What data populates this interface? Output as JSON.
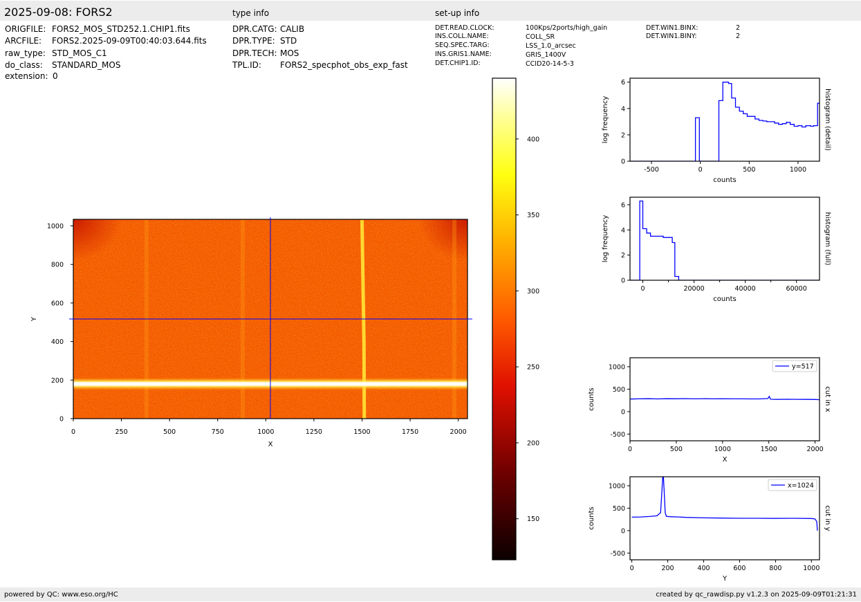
{
  "header": {
    "title": "2025-09-08: FORS2",
    "type_info_heading": "type info",
    "setup_info_heading": "set-up info"
  },
  "file_info": [
    {
      "key": "ORIGFILE:",
      "value": "FORS2_MOS_STD252.1.CHIP1.fits"
    },
    {
      "key": "ARCFILE:",
      "value": "FORS2.2025-09-09T00:40:03.644.fits"
    },
    {
      "key": "raw_type:",
      "value": "STD_MOS_C1"
    },
    {
      "key": "do_class:",
      "value": "STANDARD_MOS"
    },
    {
      "key": "extension:",
      "value": "0"
    }
  ],
  "type_info": [
    {
      "key": "DPR.CATG:",
      "value": "CALIB"
    },
    {
      "key": "DPR.TYPE:",
      "value": "STD"
    },
    {
      "key": "DPR.TECH:",
      "value": "MOS"
    },
    {
      "key": "TPL.ID:",
      "value": "FORS2_specphot_obs_exp_fast"
    }
  ],
  "setup_info": [
    {
      "key": "DET.READ.CLOCK:",
      "value": "100Kps/2ports/high_gain"
    },
    {
      "key": "INS.COLL.NAME:",
      "value": "COLL_SR"
    },
    {
      "key": "SEQ.SPEC.TARG:",
      "value": "LSS_1.0_arcsec"
    },
    {
      "key": "INS.GRIS1.NAME:",
      "value": "GRIS_1400V"
    },
    {
      "key": "DET.CHIP1.ID:",
      "value": "CCID20-14-5-3"
    }
  ],
  "setup_info_2": [
    {
      "key": "DET.WIN1.BINX:",
      "value": "2"
    },
    {
      "key": "DET.WIN1.BINY:",
      "value": "2"
    }
  ],
  "footer": {
    "left": "powered by QC: www.eso.org/HC",
    "right": "created by qc_rawdisp.py v1.2.3 on 2025-09-09T01:21:31"
  },
  "colors": {
    "band": "#ececec",
    "line": "#0000ff",
    "crosshair": "#0000ff"
  },
  "chart_data": [
    {
      "type": "heatmap",
      "xlabel": "X",
      "ylabel": "Y",
      "xlim": [
        0,
        2048
      ],
      "ylim": [
        0,
        1034
      ],
      "xticks": [
        0,
        250,
        500,
        750,
        1000,
        1250,
        1500,
        1750,
        2000
      ],
      "yticks": [
        0,
        200,
        400,
        600,
        800,
        1000
      ],
      "crosshair": {
        "x": 1024,
        "y": 517
      },
      "colormap": "hot",
      "features": {
        "background_level": 285,
        "horizontal_continuum_y": 180,
        "vertical_line_x": 1510
      }
    },
    {
      "type": "colorbar",
      "range": [
        123,
        440
      ],
      "ticks": [
        150,
        200,
        250,
        300,
        350,
        400
      ]
    },
    {
      "type": "line",
      "xlabel": "counts",
      "ylabel": "log frequency",
      "side_label": "histogram (detail)",
      "xlim": [
        -720,
        1220
      ],
      "ylim": [
        0,
        6.3
      ],
      "xticks": [
        -500,
        0,
        500,
        1000
      ],
      "yticks": [
        0,
        2,
        4,
        6
      ],
      "step": true,
      "x": [
        -720,
        -50,
        -50,
        -10,
        -10,
        190,
        190,
        230,
        230,
        290,
        290,
        320,
        320,
        360,
        360,
        400,
        400,
        440,
        440,
        480,
        480,
        560,
        560,
        600,
        600,
        640,
        640,
        680,
        680,
        760,
        760,
        800,
        800,
        840,
        840,
        880,
        880,
        920,
        920,
        960,
        960,
        1000,
        1000,
        1040,
        1040,
        1080,
        1080,
        1130,
        1130,
        1160,
        1160,
        1200,
        1200,
        1220
      ],
      "y": [
        0,
        0,
        3.3,
        3.3,
        0,
        0,
        4.6,
        4.6,
        6.0,
        6.0,
        5.9,
        5.9,
        4.8,
        4.8,
        4.1,
        4.1,
        3.8,
        3.8,
        3.6,
        3.6,
        3.4,
        3.4,
        3.2,
        3.2,
        3.1,
        3.1,
        3.05,
        3.05,
        3.0,
        3.0,
        2.9,
        2.9,
        2.8,
        2.8,
        2.85,
        2.85,
        2.95,
        2.95,
        2.8,
        2.8,
        2.65,
        2.65,
        2.7,
        2.7,
        2.6,
        2.6,
        2.7,
        2.7,
        2.65,
        2.65,
        2.7,
        2.7,
        4.4,
        4.4
      ]
    },
    {
      "type": "line",
      "xlabel": "counts",
      "ylabel": "log frequency",
      "side_label": "histogram (full)",
      "xlim": [
        -5000,
        69000
      ],
      "ylim": [
        0,
        6.6
      ],
      "xticks": [
        0,
        20000,
        40000,
        60000
      ],
      "yticks": [
        0,
        2,
        4,
        6
      ],
      "step": true,
      "x": [
        -5000,
        -1200,
        -1200,
        0,
        0,
        1500,
        1500,
        3000,
        3000,
        4500,
        4500,
        8000,
        8000,
        11500,
        11500,
        12500,
        12500,
        14000,
        14000,
        69000
      ],
      "y": [
        0,
        0,
        6.3,
        6.3,
        4.1,
        4.1,
        3.75,
        3.75,
        3.5,
        3.5,
        3.5,
        3.5,
        3.4,
        3.4,
        3.0,
        3.0,
        0.3,
        0.3,
        0,
        0
      ]
    },
    {
      "type": "line",
      "xlabel": "X",
      "ylabel": "counts",
      "side_label": "cut in x",
      "legend": "y=517",
      "legend_position": "top-right",
      "xlim": [
        0,
        2048
      ],
      "ylim": [
        -650,
        1200
      ],
      "xticks": [
        0,
        500,
        1000,
        1500,
        2000
      ],
      "yticks": [
        -500,
        0,
        500,
        1000
      ],
      "x": [
        0,
        100,
        200,
        300,
        400,
        500,
        600,
        700,
        800,
        900,
        1000,
        1100,
        1200,
        1300,
        1400,
        1490,
        1505,
        1512,
        1520,
        1600,
        1700,
        1800,
        1900,
        2000,
        2048
      ],
      "y": [
        280,
        285,
        288,
        283,
        287,
        286,
        289,
        285,
        287,
        284,
        286,
        285,
        284,
        283,
        282,
        290,
        340,
        300,
        275,
        272,
        275,
        273,
        272,
        270,
        265
      ]
    },
    {
      "type": "line",
      "xlabel": "Y",
      "ylabel": "counts",
      "side_label": "cut in y",
      "legend": "x=1024",
      "legend_position": "top-right",
      "xlim": [
        -10,
        1045
      ],
      "ylim": [
        -650,
        1200
      ],
      "xticks": [
        0,
        200,
        400,
        600,
        800,
        1000
      ],
      "yticks": [
        -500,
        0,
        500,
        1000
      ],
      "x": [
        0,
        50,
        100,
        140,
        160,
        168,
        172,
        176,
        180,
        186,
        192,
        210,
        260,
        300,
        400,
        500,
        600,
        700,
        800,
        900,
        1000,
        1020,
        1030,
        1033
      ],
      "y": [
        300,
        305,
        315,
        330,
        400,
        900,
        1200,
        1200,
        900,
        400,
        320,
        310,
        305,
        295,
        285,
        280,
        275,
        275,
        272,
        275,
        270,
        260,
        200,
        0
      ]
    }
  ]
}
